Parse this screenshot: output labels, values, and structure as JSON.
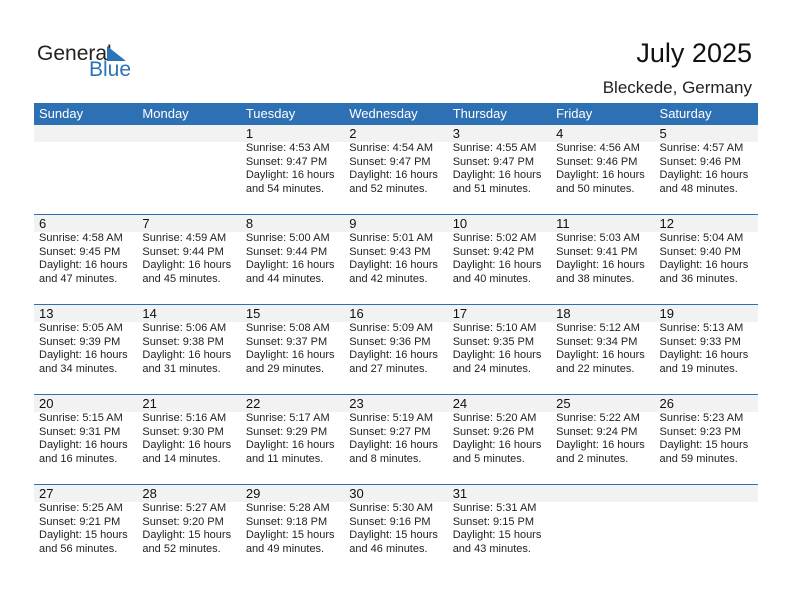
{
  "logo": {
    "word1": "General",
    "word2": "Blue"
  },
  "header": {
    "title": "July 2025",
    "location": "Bleckede, Germany"
  },
  "colors": {
    "accent": "#2e70b4",
    "band": "#f2f2f2"
  },
  "weekdays": [
    "Sunday",
    "Monday",
    "Tuesday",
    "Wednesday",
    "Thursday",
    "Friday",
    "Saturday"
  ],
  "weeks": [
    [
      null,
      null,
      {
        "day": "1",
        "sunrise": "Sunrise: 4:53 AM",
        "sunset": "Sunset: 9:47 PM",
        "daylight": "Daylight: 16 hours",
        "minutes": "and 54 minutes."
      },
      {
        "day": "2",
        "sunrise": "Sunrise: 4:54 AM",
        "sunset": "Sunset: 9:47 PM",
        "daylight": "Daylight: 16 hours",
        "minutes": "and 52 minutes."
      },
      {
        "day": "3",
        "sunrise": "Sunrise: 4:55 AM",
        "sunset": "Sunset: 9:47 PM",
        "daylight": "Daylight: 16 hours",
        "minutes": "and 51 minutes."
      },
      {
        "day": "4",
        "sunrise": "Sunrise: 4:56 AM",
        "sunset": "Sunset: 9:46 PM",
        "daylight": "Daylight: 16 hours",
        "minutes": "and 50 minutes."
      },
      {
        "day": "5",
        "sunrise": "Sunrise: 4:57 AM",
        "sunset": "Sunset: 9:46 PM",
        "daylight": "Daylight: 16 hours",
        "minutes": "and 48 minutes."
      }
    ],
    [
      {
        "day": "6",
        "sunrise": "Sunrise: 4:58 AM",
        "sunset": "Sunset: 9:45 PM",
        "daylight": "Daylight: 16 hours",
        "minutes": "and 47 minutes."
      },
      {
        "day": "7",
        "sunrise": "Sunrise: 4:59 AM",
        "sunset": "Sunset: 9:44 PM",
        "daylight": "Daylight: 16 hours",
        "minutes": "and 45 minutes."
      },
      {
        "day": "8",
        "sunrise": "Sunrise: 5:00 AM",
        "sunset": "Sunset: 9:44 PM",
        "daylight": "Daylight: 16 hours",
        "minutes": "and 44 minutes."
      },
      {
        "day": "9",
        "sunrise": "Sunrise: 5:01 AM",
        "sunset": "Sunset: 9:43 PM",
        "daylight": "Daylight: 16 hours",
        "minutes": "and 42 minutes."
      },
      {
        "day": "10",
        "sunrise": "Sunrise: 5:02 AM",
        "sunset": "Sunset: 9:42 PM",
        "daylight": "Daylight: 16 hours",
        "minutes": "and 40 minutes."
      },
      {
        "day": "11",
        "sunrise": "Sunrise: 5:03 AM",
        "sunset": "Sunset: 9:41 PM",
        "daylight": "Daylight: 16 hours",
        "minutes": "and 38 minutes."
      },
      {
        "day": "12",
        "sunrise": "Sunrise: 5:04 AM",
        "sunset": "Sunset: 9:40 PM",
        "daylight": "Daylight: 16 hours",
        "minutes": "and 36 minutes."
      }
    ],
    [
      {
        "day": "13",
        "sunrise": "Sunrise: 5:05 AM",
        "sunset": "Sunset: 9:39 PM",
        "daylight": "Daylight: 16 hours",
        "minutes": "and 34 minutes."
      },
      {
        "day": "14",
        "sunrise": "Sunrise: 5:06 AM",
        "sunset": "Sunset: 9:38 PM",
        "daylight": "Daylight: 16 hours",
        "minutes": "and 31 minutes."
      },
      {
        "day": "15",
        "sunrise": "Sunrise: 5:08 AM",
        "sunset": "Sunset: 9:37 PM",
        "daylight": "Daylight: 16 hours",
        "minutes": "and 29 minutes."
      },
      {
        "day": "16",
        "sunrise": "Sunrise: 5:09 AM",
        "sunset": "Sunset: 9:36 PM",
        "daylight": "Daylight: 16 hours",
        "minutes": "and 27 minutes."
      },
      {
        "day": "17",
        "sunrise": "Sunrise: 5:10 AM",
        "sunset": "Sunset: 9:35 PM",
        "daylight": "Daylight: 16 hours",
        "minutes": "and 24 minutes."
      },
      {
        "day": "18",
        "sunrise": "Sunrise: 5:12 AM",
        "sunset": "Sunset: 9:34 PM",
        "daylight": "Daylight: 16 hours",
        "minutes": "and 22 minutes."
      },
      {
        "day": "19",
        "sunrise": "Sunrise: 5:13 AM",
        "sunset": "Sunset: 9:33 PM",
        "daylight": "Daylight: 16 hours",
        "minutes": "and 19 minutes."
      }
    ],
    [
      {
        "day": "20",
        "sunrise": "Sunrise: 5:15 AM",
        "sunset": "Sunset: 9:31 PM",
        "daylight": "Daylight: 16 hours",
        "minutes": "and 16 minutes."
      },
      {
        "day": "21",
        "sunrise": "Sunrise: 5:16 AM",
        "sunset": "Sunset: 9:30 PM",
        "daylight": "Daylight: 16 hours",
        "minutes": "and 14 minutes."
      },
      {
        "day": "22",
        "sunrise": "Sunrise: 5:17 AM",
        "sunset": "Sunset: 9:29 PM",
        "daylight": "Daylight: 16 hours",
        "minutes": "and 11 minutes."
      },
      {
        "day": "23",
        "sunrise": "Sunrise: 5:19 AM",
        "sunset": "Sunset: 9:27 PM",
        "daylight": "Daylight: 16 hours",
        "minutes": "and 8 minutes."
      },
      {
        "day": "24",
        "sunrise": "Sunrise: 5:20 AM",
        "sunset": "Sunset: 9:26 PM",
        "daylight": "Daylight: 16 hours",
        "minutes": "and 5 minutes."
      },
      {
        "day": "25",
        "sunrise": "Sunrise: 5:22 AM",
        "sunset": "Sunset: 9:24 PM",
        "daylight": "Daylight: 16 hours",
        "minutes": "and 2 minutes."
      },
      {
        "day": "26",
        "sunrise": "Sunrise: 5:23 AM",
        "sunset": "Sunset: 9:23 PM",
        "daylight": "Daylight: 15 hours",
        "minutes": "and 59 minutes."
      }
    ],
    [
      {
        "day": "27",
        "sunrise": "Sunrise: 5:25 AM",
        "sunset": "Sunset: 9:21 PM",
        "daylight": "Daylight: 15 hours",
        "minutes": "and 56 minutes."
      },
      {
        "day": "28",
        "sunrise": "Sunrise: 5:27 AM",
        "sunset": "Sunset: 9:20 PM",
        "daylight": "Daylight: 15 hours",
        "minutes": "and 52 minutes."
      },
      {
        "day": "29",
        "sunrise": "Sunrise: 5:28 AM",
        "sunset": "Sunset: 9:18 PM",
        "daylight": "Daylight: 15 hours",
        "minutes": "and 49 minutes."
      },
      {
        "day": "30",
        "sunrise": "Sunrise: 5:30 AM",
        "sunset": "Sunset: 9:16 PM",
        "daylight": "Daylight: 15 hours",
        "minutes": "and 46 minutes."
      },
      {
        "day": "31",
        "sunrise": "Sunrise: 5:31 AM",
        "sunset": "Sunset: 9:15 PM",
        "daylight": "Daylight: 15 hours",
        "minutes": "and 43 minutes."
      },
      null,
      null
    ]
  ]
}
